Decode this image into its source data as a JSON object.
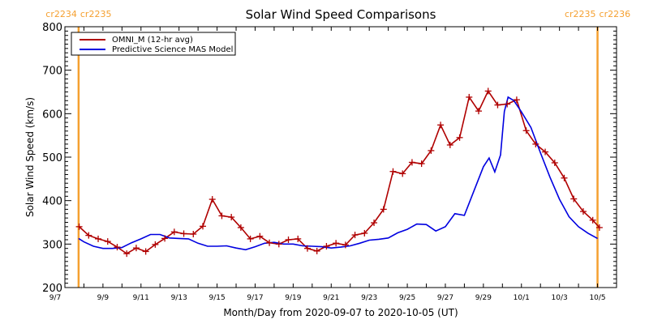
{
  "chart_data": {
    "type": "line",
    "title": "Solar Wind Speed Comparisons",
    "xlabel": "Month/Day from 2020-09-07 to 2020-10-05 (UT)",
    "ylabel": "Solar Wind Speed (km/s)",
    "ylim": [
      200,
      800
    ],
    "xlim_days": [
      0,
      29
    ],
    "x_unit": "days since 2020-09-07",
    "yticks": [
      200,
      300,
      400,
      500,
      600,
      700,
      800
    ],
    "ytick_labels": [
      "200",
      "300",
      "400",
      "500",
      "600",
      "700",
      "800"
    ],
    "xticks": [
      0,
      2,
      4,
      6,
      8,
      10,
      12,
      14,
      16,
      18,
      20,
      22,
      24,
      26,
      28
    ],
    "xtick_labels": [
      "9/7",
      "9/9",
      "9/11",
      "9/13",
      "9/15",
      "9/17",
      "9/19",
      "9/21",
      "9/23",
      "9/25",
      "9/27",
      "9/29",
      "10/1",
      "10/3",
      "10/5"
    ],
    "legend_position": "top-left",
    "carrington_markers": [
      {
        "day": 0.72,
        "label_left": "cr2234",
        "label_right": "cr2235",
        "color": "#f5a030"
      },
      {
        "day": 28.0,
        "label_left": "cr2235",
        "label_right": "cr2236",
        "color": "#f5a030"
      }
    ],
    "series": [
      {
        "name": "OMNI_M (12-hr avg)",
        "color": "#b00000",
        "markers": true,
        "x": [
          0.75,
          1.25,
          1.75,
          2.25,
          2.75,
          3.25,
          3.75,
          4.25,
          4.75,
          5.25,
          5.75,
          6.25,
          6.75,
          7.25,
          7.75,
          8.25,
          8.75,
          9.25,
          9.75,
          10.25,
          10.75,
          11.25,
          11.75,
          12.25,
          12.75,
          13.25,
          13.75,
          14.25,
          14.75,
          15.25,
          15.75,
          16.25,
          16.75,
          17.25,
          17.75,
          18.25,
          18.75,
          19.25,
          19.75,
          20.25,
          20.75,
          21.25,
          21.75,
          22.25,
          22.75,
          23.25,
          23.75,
          24.25,
          24.75,
          25.25,
          25.75,
          26.25,
          26.75,
          27.25,
          27.75,
          28.1
        ],
        "values": [
          340,
          320,
          312,
          306,
          293,
          278,
          291,
          283,
          299,
          313,
          328,
          324,
          323,
          341,
          403,
          365,
          362,
          338,
          312,
          318,
          303,
          300,
          310,
          312,
          290,
          284,
          295,
          302,
          298,
          321,
          325,
          349,
          380,
          467,
          462,
          488,
          485,
          515,
          574,
          528,
          545,
          638,
          606,
          652,
          620,
          622,
          632,
          561,
          530,
          512,
          487,
          452,
          404,
          375,
          355,
          338
        ]
      },
      {
        "name": "Predictive Science MAS Model",
        "color": "#0000e0",
        "markers": false,
        "x": [
          0.72,
          1.0,
          1.5,
          2.0,
          2.5,
          3.0,
          3.5,
          4.0,
          4.5,
          5.0,
          5.5,
          6.0,
          6.5,
          7.0,
          7.5,
          8.0,
          8.5,
          9.0,
          9.5,
          10.0,
          10.5,
          11.0,
          11.5,
          12.0,
          12.5,
          13.0,
          13.5,
          14.0,
          14.5,
          15.0,
          15.5,
          16.0,
          16.5,
          17.0,
          17.5,
          18.0,
          18.5,
          19.0,
          19.5,
          20.0,
          20.5,
          21.0,
          21.5,
          22.0,
          22.3,
          22.6,
          22.9,
          23.1,
          23.3,
          23.6,
          24.0,
          24.5,
          25.0,
          25.5,
          26.0,
          26.5,
          27.0,
          27.5,
          28.0
        ],
        "values": [
          313,
          305,
          295,
          290,
          290,
          292,
          303,
          312,
          322,
          322,
          314,
          313,
          312,
          302,
          295,
          295,
          296,
          291,
          287,
          294,
          302,
          304,
          300,
          300,
          296,
          295,
          294,
          291,
          293,
          296,
          302,
          309,
          311,
          314,
          326,
          334,
          346,
          345,
          330,
          340,
          370,
          366,
          422,
          478,
          498,
          466,
          505,
          605,
          638,
          630,
          604,
          568,
          510,
          454,
          403,
          363,
          340,
          325,
          313
        ]
      }
    ]
  }
}
